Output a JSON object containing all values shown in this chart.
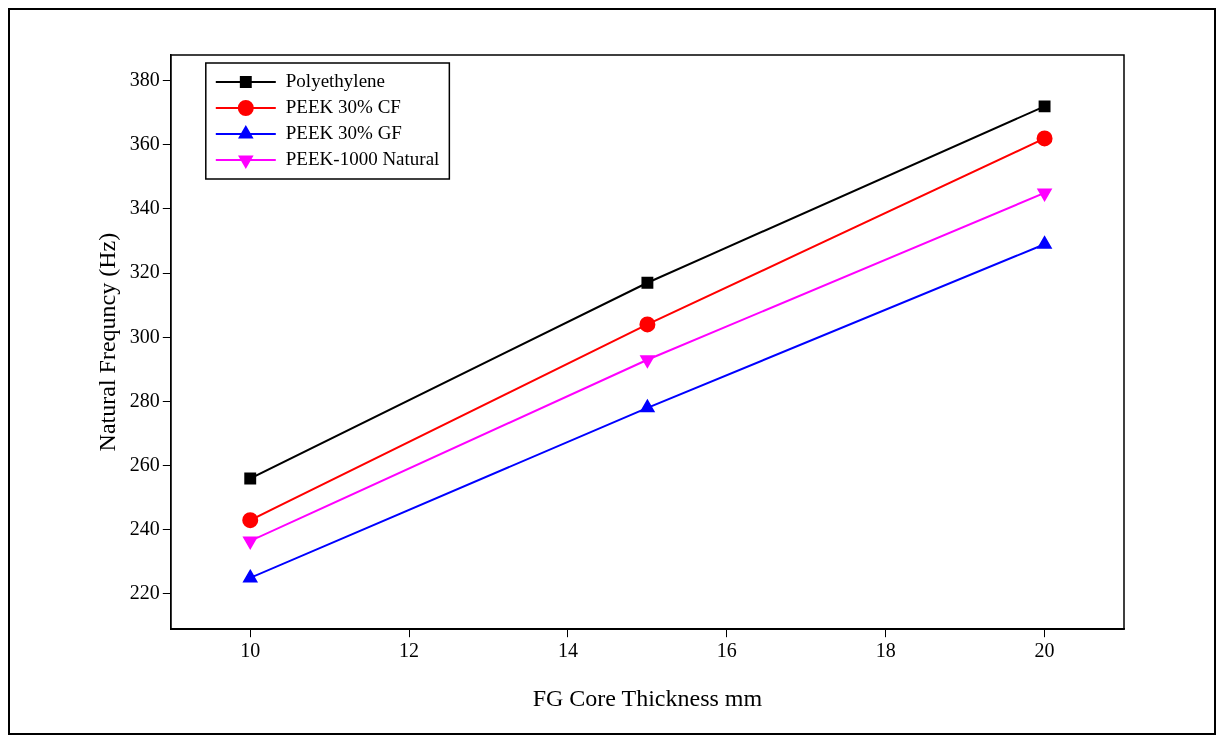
{
  "chart_data": {
    "type": "line",
    "xlabel": "FG Core Thickness mm",
    "ylabel": "Natural Frequncy (Hz)",
    "x": [
      10,
      15,
      20
    ],
    "series": [
      {
        "name": "Polyethylene",
        "color": "#000000",
        "marker": "square",
        "values": [
          256,
          317,
          372
        ]
      },
      {
        "name": "PEEK 30% CF",
        "color": "#ff0000",
        "marker": "circle",
        "values": [
          243,
          304,
          362
        ]
      },
      {
        "name": "PEEK 30% GF",
        "color": "#0000ff",
        "marker": "triangle",
        "values": [
          225,
          278,
          329
        ]
      },
      {
        "name": "PEEK-1000 Natural",
        "color": "#ff00ff",
        "marker": "triangle-down",
        "values": [
          236.5,
          293,
          345
        ]
      }
    ],
    "xlim": [
      9,
      21
    ],
    "xticks": [
      10,
      12,
      14,
      16,
      18,
      20
    ],
    "ylim": [
      209,
      388
    ],
    "yticks": [
      220,
      240,
      260,
      280,
      300,
      320,
      340,
      360,
      380
    ],
    "grid": false,
    "legend": "top left",
    "line_style": "solid"
  }
}
